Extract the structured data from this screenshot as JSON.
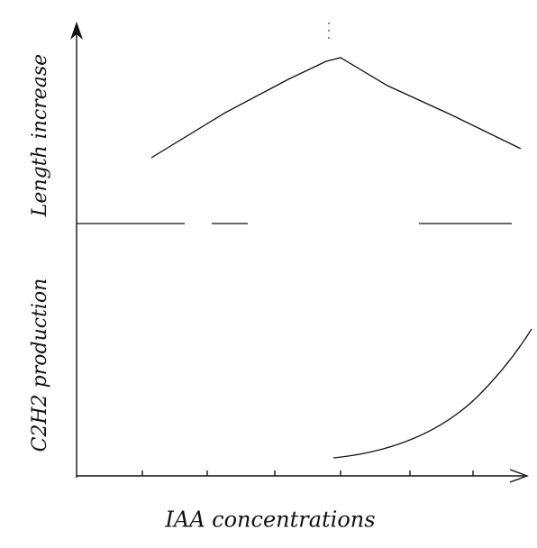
{
  "labels": {
    "y_upper": "Length increase",
    "y_lower": "C2H2 production",
    "x_axis": "IAA concentrations"
  }
}
